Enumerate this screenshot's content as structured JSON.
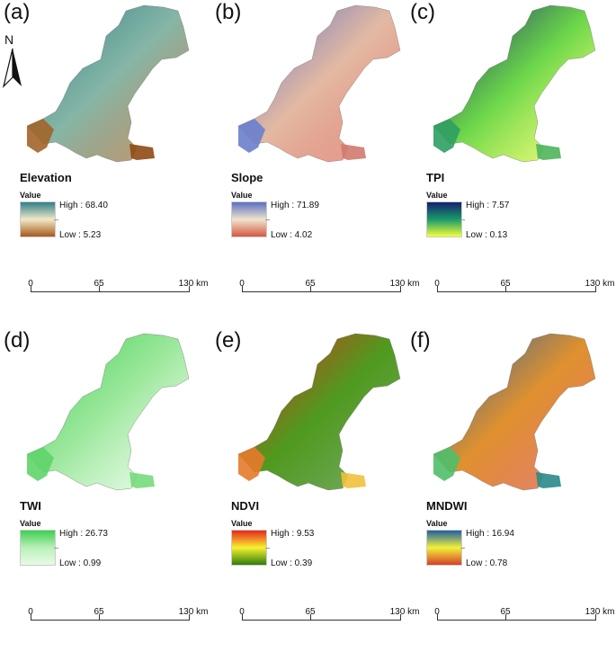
{
  "north_arrow": {
    "label": "N"
  },
  "scale": {
    "ticks": [
      "0",
      "65",
      "130 km"
    ]
  },
  "panels": [
    {
      "id": "a",
      "label": "(a)",
      "title": "Elevation",
      "value_label": "Value",
      "high": "High : 68.40",
      "low": "Low : 5.23",
      "ramp": [
        "#2f7f8a",
        "#f1e8c7",
        "#a55a1c"
      ],
      "map_fill": "#86b6a6",
      "west_fill": "#a3642a",
      "east_fill": "#8e4a13"
    },
    {
      "id": "b",
      "label": "(b)",
      "title": "Slope",
      "value_label": "Value",
      "high": "High : 71.89",
      "low": "Low : 4.02",
      "ramp": [
        "#5a6fc4",
        "#f0e4cc",
        "#d65843"
      ],
      "map_fill": "#e3b9a3",
      "west_fill": "#6a7fcc",
      "east_fill": "#cf7a6c"
    },
    {
      "id": "c",
      "label": "(c)",
      "title": "TPI",
      "value_label": "Value",
      "high": "High : 7.57",
      "low": "Low : 0.13",
      "ramp": [
        "#13216e",
        "#1a9a6a",
        "#f4ff3a"
      ],
      "map_fill": "#6bd64a",
      "west_fill": "#2f9e62",
      "east_fill": "#4cb55a"
    },
    {
      "id": "d",
      "label": "(d)",
      "title": "TWI",
      "value_label": "Value",
      "high": "High : 26.73",
      "low": "Low : 0.99",
      "ramp": [
        "#3fcf4f",
        "#b9f0b9",
        "#e6fbe6"
      ],
      "map_fill": "#9ee89e",
      "west_fill": "#5fd46a",
      "east_fill": "#76dc7a"
    },
    {
      "id": "e",
      "label": "(e)",
      "title": "NDVI",
      "value_label": "Value",
      "high": "High : 9.53",
      "low": "Low : 0.39",
      "ramp": [
        "#e8251c",
        "#f7f230",
        "#2f7d0c"
      ],
      "map_fill": "#4f9a1e",
      "west_fill": "#e67a2a",
      "east_fill": "#f2c13c"
    },
    {
      "id": "f",
      "label": "(f)",
      "title": "MNDWI",
      "value_label": "Value",
      "high": "High : 16.94",
      "low": "Low : 0.78",
      "ramp": [
        "#1f5fa4",
        "#f2f23a",
        "#d6402a"
      ],
      "map_fill": "#e0912e",
      "west_fill": "#4fbf6a",
      "east_fill": "#2a8a8a"
    }
  ]
}
